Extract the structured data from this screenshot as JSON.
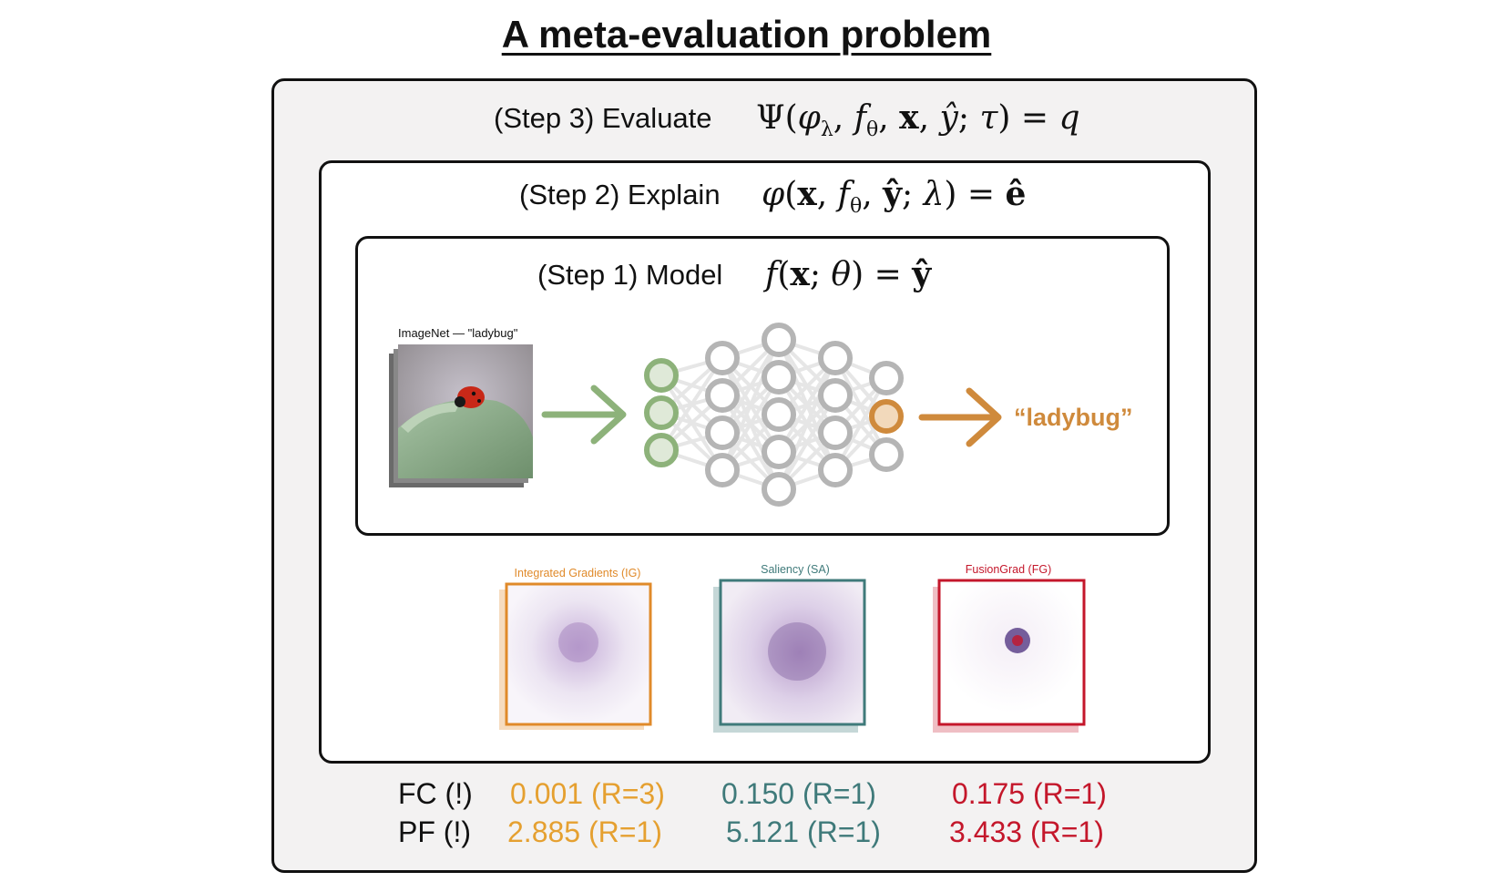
{
  "title": "A meta-evaluation problem",
  "step3": {
    "label": "(Step 3) Evaluate",
    "formula": "Ψ(φ_λ, f_θ, x, ŷ; τ) = q"
  },
  "step2": {
    "label": "(Step 2) Explain",
    "formula": "φ(x, f_θ, ŷ; λ) = ê"
  },
  "step1": {
    "label": "(Step 1) Model",
    "formula": "f(x; θ) = ŷ"
  },
  "image_caption": "ImageNet — \"ladybug\"",
  "prediction": "“ladybug”",
  "explanations": [
    {
      "name": "Integrated Gradients (IG)",
      "color": "#e08a2a"
    },
    {
      "name": "Saliency (SA)",
      "color": "#3f7a7a"
    },
    {
      "name": "FusionGrad (FG)",
      "color": "#c4172b"
    }
  ],
  "metrics": [
    {
      "label": "FC (!)",
      "values": [
        "0.001 (R=3)",
        "0.150 (R=1)",
        "0.175 (R=1)"
      ]
    },
    {
      "label": "PF (!)",
      "values": [
        "2.885 (R=1)",
        "5.121 (R=1)",
        "3.433 (R=1)"
      ]
    }
  ],
  "colors": {
    "input_nodes": "#8db27a",
    "hidden_nodes": "#b5b5b5",
    "output_node": "#cf8a3c",
    "metric_ig": "#e5a030",
    "metric_sa": "#3f7a7a",
    "metric_fg": "#c4172b"
  }
}
